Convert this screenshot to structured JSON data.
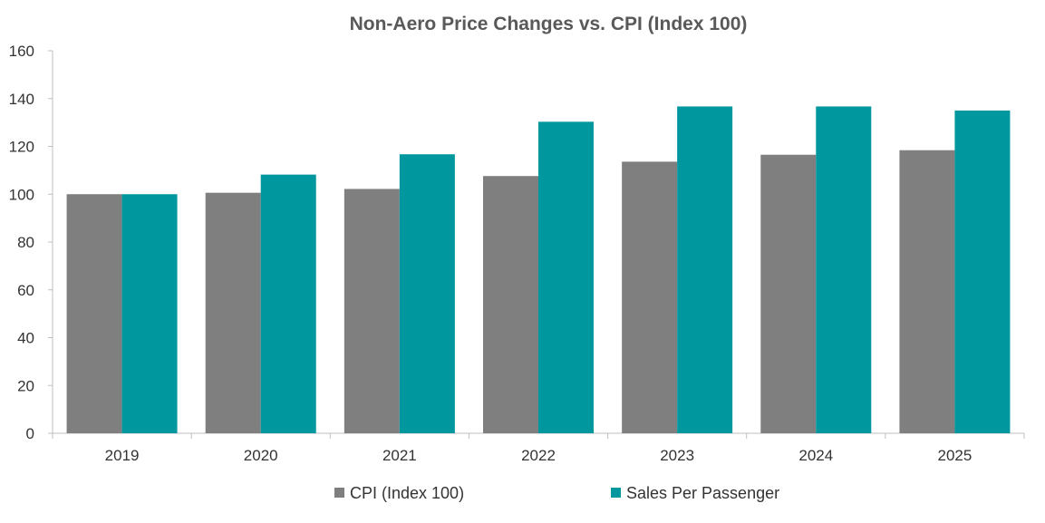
{
  "chart_data": {
    "type": "bar",
    "title": "Non-Aero Price Changes vs. CPI (Index 100)",
    "xlabel": "",
    "ylabel": "",
    "categories": [
      "2019",
      "2020",
      "2021",
      "2022",
      "2023",
      "2024",
      "2025"
    ],
    "series": [
      {
        "name": "CPI (Index 100)",
        "color": "#7f7f7f",
        "values": [
          100,
          100.6,
          102.2,
          107.6,
          113.6,
          116.5,
          118.4
        ]
      },
      {
        "name": "Sales Per Passenger",
        "color": "#00979f",
        "values": [
          100,
          108.2,
          116.7,
          130.3,
          136.7,
          136.7,
          135.0
        ]
      }
    ],
    "ylim": [
      0,
      160
    ],
    "yticks": [
      0,
      20,
      40,
      60,
      80,
      100,
      120,
      140,
      160
    ],
    "grid": false,
    "legend_position": "bottom"
  }
}
